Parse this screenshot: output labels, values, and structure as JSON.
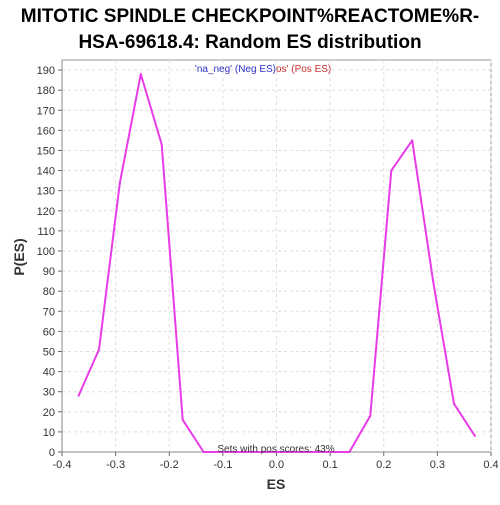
{
  "chart_data": {
    "type": "line",
    "title_lines": [
      "MITOTIC SPINDLE CHECKPOINT%REACTOME%R-",
      "HSA-69618.4: Random ES distribution"
    ],
    "xlabel": "ES",
    "ylabel": "P(ES)",
    "xlim": [
      -0.4,
      0.4
    ],
    "ylim": [
      0,
      195
    ],
    "xticks": [
      -0.4,
      -0.3,
      -0.2,
      -0.1,
      0.0,
      0.1,
      0.2,
      0.3,
      0.4
    ],
    "xtick_labels": [
      "-0.4",
      "-0.3",
      "-0.2",
      "-0.1",
      "0.0",
      "0.1",
      "0.2",
      "0.3",
      "0.4"
    ],
    "yticks": [
      0,
      10,
      20,
      30,
      40,
      50,
      60,
      70,
      80,
      90,
      100,
      110,
      120,
      130,
      140,
      150,
      160,
      170,
      180,
      190
    ],
    "grid": true,
    "legend": {
      "position": "top-center",
      "neg_label": "'na_neg' (Neg ES)",
      "pos_label": "os' (Pos ES)",
      "neg_color": "#3333cc",
      "pos_color": "#cc3333"
    },
    "annotation": "Sets with pos scores: 43%",
    "series": [
      {
        "color": "#e83ce8",
        "x": [
          -0.369,
          -0.331,
          -0.292,
          -0.253,
          -0.214,
          -0.175,
          -0.136,
          -0.097,
          -0.058,
          0.058,
          0.097,
          0.136,
          0.175,
          0.214,
          0.253,
          0.292,
          0.331,
          0.37
        ],
        "y": [
          28,
          51,
          134,
          188,
          153,
          16,
          0,
          0,
          0,
          0,
          0,
          0,
          18,
          140,
          155,
          85,
          24,
          8
        ]
      }
    ]
  }
}
